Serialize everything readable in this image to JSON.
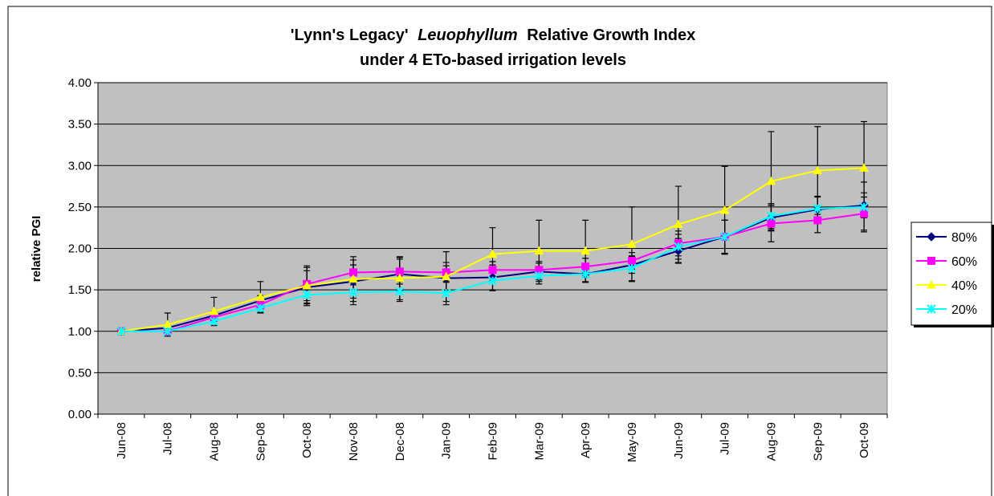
{
  "chart_data": {
    "type": "line",
    "title": {
      "line1": [
        "'Lynn's Legacy'",
        "Leuophyllum",
        "Relative Growth Index"
      ],
      "line2": "under 4 ETo-based irrigation levels"
    },
    "y_label": "relative PGI",
    "categories": [
      "Jun-08",
      "Jul-08",
      "Aug-08",
      "Sep-08",
      "Oct-08",
      "Nov-08",
      "Dec-08",
      "Jan-09",
      "Feb-09",
      "Mar-09",
      "Apr-09",
      "May-09",
      "Jun-09",
      "Jul-09",
      "Aug-09",
      "Sep-09",
      "Oct-09"
    ],
    "ylim": [
      0,
      4
    ],
    "yticks": [
      {
        "value": 0,
        "label": "0.00"
      },
      {
        "value": 0.5,
        "label": "0.50"
      },
      {
        "value": 1,
        "label": "1.00"
      },
      {
        "value": 1.5,
        "label": "1.50"
      },
      {
        "value": 2,
        "label": "2.00"
      },
      {
        "value": 2.5,
        "label": "2.50"
      },
      {
        "value": 3,
        "label": "3.00"
      },
      {
        "value": 3.5,
        "label": "3.50"
      },
      {
        "value": 4,
        "label": "4.00"
      }
    ],
    "grid": true,
    "legend": "right",
    "series": [
      {
        "name": "80%",
        "color": "#000080",
        "marker": "diamond",
        "values": [
          1.0,
          1.04,
          1.19,
          1.37,
          1.53,
          1.6,
          1.69,
          1.64,
          1.65,
          1.72,
          1.69,
          1.8,
          1.97,
          2.14,
          2.37,
          2.47,
          2.52
        ],
        "errors": [
          0,
          0.03,
          0.05,
          0.06,
          0.2,
          0.2,
          0.2,
          0.15,
          0.15,
          0.1,
          0.1,
          0.1,
          0.15,
          0.2,
          0.15,
          0.15,
          0.15
        ]
      },
      {
        "name": "60%",
        "color": "#ff00ff",
        "marker": "square",
        "values": [
          1.0,
          1.0,
          1.17,
          1.32,
          1.57,
          1.71,
          1.72,
          1.71,
          1.74,
          1.74,
          1.78,
          1.85,
          2.06,
          2.14,
          2.3,
          2.34,
          2.42
        ],
        "errors": [
          0,
          0.02,
          0.05,
          0.06,
          0.2,
          0.15,
          0.15,
          0.12,
          0.1,
          0.1,
          0.1,
          0.1,
          0.15,
          0.2,
          0.22,
          0.15,
          0.2
        ]
      },
      {
        "name": "40%",
        "color": "#ffff00",
        "marker": "triangle",
        "values": [
          1.0,
          1.08,
          1.24,
          1.41,
          1.55,
          1.63,
          1.64,
          1.66,
          1.93,
          1.97,
          1.97,
          2.05,
          2.29,
          2.46,
          2.81,
          2.94,
          2.97
        ],
        "errors": [
          0,
          0.14,
          0.17,
          0.19,
          0.24,
          0.27,
          0.26,
          0.3,
          0.32,
          0.37,
          0.37,
          0.45,
          0.46,
          0.53,
          0.6,
          0.53,
          0.56
        ]
      },
      {
        "name": "20%",
        "color": "#00ffff",
        "marker": "x",
        "values": [
          1.0,
          1.0,
          1.12,
          1.28,
          1.44,
          1.47,
          1.48,
          1.46,
          1.61,
          1.67,
          1.69,
          1.76,
          2.02,
          2.14,
          2.39,
          2.48,
          2.5
        ],
        "errors": [
          0,
          0.03,
          0.05,
          0.05,
          0.1,
          0.15,
          0.12,
          0.14,
          0.12,
          0.1,
          0.1,
          0.15,
          0.15,
          0.2,
          0.15,
          0.15,
          0.3
        ]
      }
    ]
  }
}
